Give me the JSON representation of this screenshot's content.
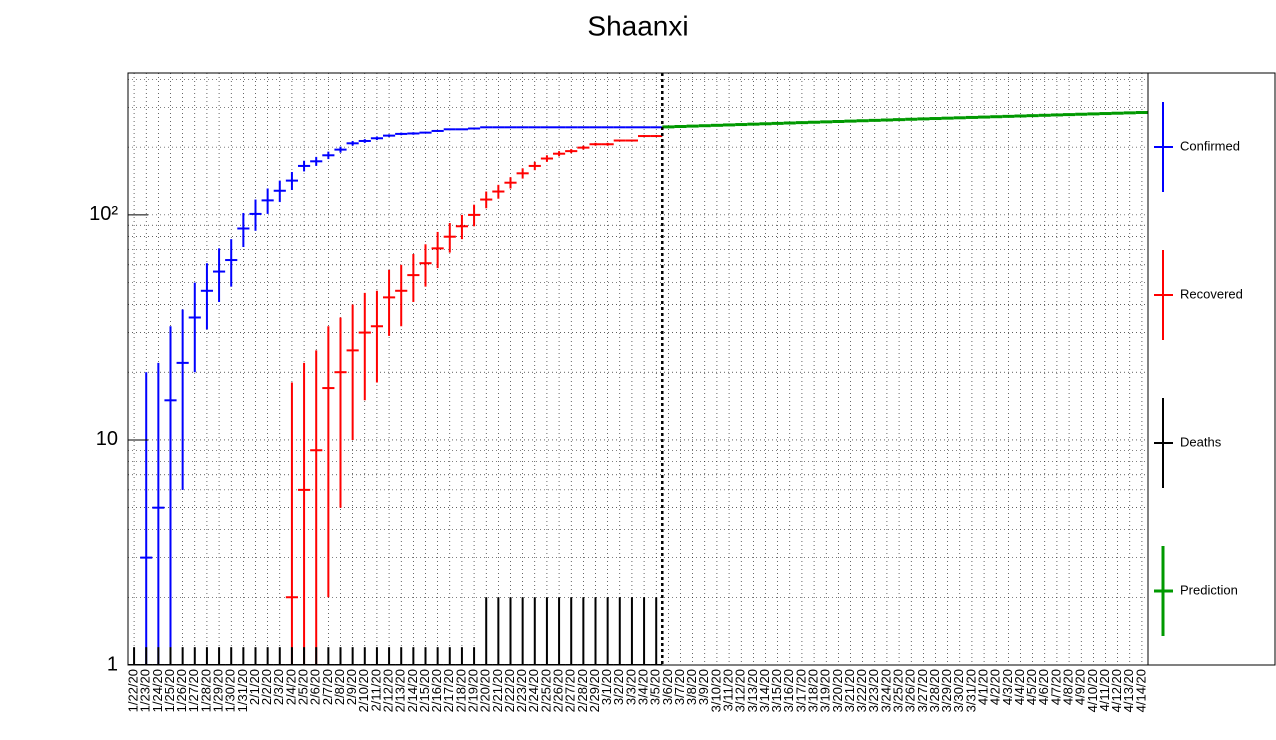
{
  "chart_data": {
    "type": "errorbar",
    "title": "Shaanxi",
    "categories": [
      "1/22/20",
      "1/23/20",
      "1/24/20",
      "1/25/20",
      "1/26/20",
      "1/27/20",
      "1/28/20",
      "1/29/20",
      "1/30/20",
      "1/31/20",
      "2/1/20",
      "2/2/20",
      "2/3/20",
      "2/4/20",
      "2/5/20",
      "2/6/20",
      "2/7/20",
      "2/8/20",
      "2/9/20",
      "2/10/20",
      "2/11/20",
      "2/12/20",
      "2/13/20",
      "2/14/20",
      "2/15/20",
      "2/16/20",
      "2/17/20",
      "2/18/20",
      "2/19/20",
      "2/20/20",
      "2/21/20",
      "2/22/20",
      "2/23/20",
      "2/24/20",
      "2/25/20",
      "2/26/20",
      "2/27/20",
      "2/28/20",
      "2/29/20",
      "3/1/20",
      "3/2/20",
      "3/3/20",
      "3/4/20",
      "3/5/20",
      "3/6/20",
      "3/7/20",
      "3/8/20",
      "3/9/20",
      "3/10/20",
      "3/11/20",
      "3/12/20",
      "3/13/20",
      "3/14/20",
      "3/15/20",
      "3/16/20",
      "3/17/20",
      "3/18/20",
      "3/19/20",
      "3/20/20",
      "3/21/20",
      "3/22/20",
      "3/23/20",
      "3/24/20",
      "3/25/20",
      "3/26/20",
      "3/27/20",
      "3/28/20",
      "3/29/20",
      "3/30/20",
      "3/31/20",
      "4/1/20",
      "4/2/20",
      "4/3/20",
      "4/4/20",
      "4/5/20",
      "4/6/20",
      "4/7/20",
      "4/8/20",
      "4/9/20",
      "4/10/20",
      "4/11/20",
      "4/12/20",
      "4/13/20",
      "4/14/20"
    ],
    "series": [
      {
        "name": "Confirmed",
        "color": "#0000ff",
        "values": [
          null,
          3,
          5,
          15,
          22,
          35,
          46,
          56,
          63,
          87,
          101,
          116,
          128,
          142,
          165,
          173,
          184,
          195,
          208,
          213,
          219,
          225,
          229,
          230,
          232,
          236,
          240,
          240,
          242,
          245,
          245,
          245,
          245,
          245,
          245,
          245,
          245,
          245,
          245,
          245,
          245,
          245,
          245,
          245,
          null,
          null,
          null,
          null,
          null,
          null,
          null,
          null,
          null,
          null,
          null,
          null,
          null,
          null,
          null,
          null,
          null,
          null,
          null,
          null,
          null,
          null,
          null,
          null,
          null,
          null,
          null,
          null,
          null,
          null,
          null,
          null,
          null,
          null,
          null,
          null,
          null,
          null,
          null,
          null
        ],
        "errors": [
          null,
          17,
          17,
          17,
          16,
          15,
          15,
          15,
          15,
          15,
          16,
          15,
          14,
          13,
          9,
          8,
          7,
          6,
          5,
          4,
          4,
          3,
          3,
          3,
          2,
          2,
          2,
          1,
          1,
          0,
          0,
          0,
          0,
          0,
          0,
          0,
          0,
          0,
          0,
          0,
          0,
          0,
          0,
          0,
          null,
          null,
          null,
          null,
          null,
          null,
          null,
          null,
          null,
          null,
          null,
          null,
          null,
          null,
          null,
          null,
          null,
          null,
          null,
          null,
          null,
          null,
          null,
          null,
          null,
          null,
          null,
          null,
          null,
          null,
          null,
          null,
          null,
          null,
          null,
          null,
          null,
          null,
          null,
          null
        ]
      },
      {
        "name": "Recovered",
        "color": "#ff0000",
        "values": [
          null,
          null,
          null,
          null,
          null,
          null,
          null,
          null,
          null,
          null,
          null,
          null,
          null,
          2,
          6,
          9,
          17,
          20,
          25,
          30,
          32,
          43,
          46,
          54,
          61,
          71,
          80,
          89,
          100,
          117,
          127,
          139,
          153,
          165,
          178,
          187,
          192,
          199,
          206,
          206,
          214,
          214,
          224,
          224,
          null,
          null,
          null,
          null,
          null,
          null,
          null,
          null,
          null,
          null,
          null,
          null,
          null,
          null,
          null,
          null,
          null,
          null,
          null,
          null,
          null,
          null,
          null,
          null,
          null,
          null,
          null,
          null,
          null,
          null,
          null,
          null,
          null,
          null,
          null,
          null,
          null,
          null,
          null,
          null
        ],
        "errors": [
          null,
          null,
          null,
          null,
          null,
          null,
          null,
          null,
          null,
          null,
          null,
          null,
          null,
          16,
          16,
          16,
          15,
          15,
          15,
          15,
          14,
          14,
          14,
          13,
          13,
          13,
          12,
          11,
          11,
          10,
          9,
          8,
          8,
          7,
          6,
          5,
          4,
          4,
          3,
          3,
          2,
          2,
          2,
          2,
          null,
          null,
          null,
          null,
          null,
          null,
          null,
          null,
          null,
          null,
          null,
          null,
          null,
          null,
          null,
          null,
          null,
          null,
          null,
          null,
          null,
          null,
          null,
          null,
          null,
          null,
          null,
          null,
          null,
          null,
          null,
          null,
          null,
          null,
          null,
          null,
          null,
          null,
          null,
          null
        ]
      },
      {
        "name": "Deaths",
        "color": "#000000",
        "values": [
          1,
          1,
          1,
          1,
          1,
          1,
          1,
          1,
          1,
          1,
          1,
          1,
          1,
          1,
          1,
          1,
          1,
          1,
          1,
          1,
          1,
          1,
          1,
          1,
          1,
          1,
          1,
          1,
          1,
          1,
          1,
          1,
          1,
          1,
          1,
          1,
          1,
          1,
          1,
          1,
          1,
          1,
          1,
          1,
          null,
          null,
          null,
          null,
          null,
          null,
          null,
          null,
          null,
          null,
          null,
          null,
          null,
          null,
          null,
          null,
          null,
          null,
          null,
          null,
          null,
          null,
          null,
          null,
          null,
          null,
          null,
          null,
          null,
          null,
          null,
          null,
          null,
          null,
          null,
          null,
          null,
          null,
          null,
          null
        ],
        "errors": [
          0.2,
          0.2,
          0.2,
          0.2,
          0.2,
          0.2,
          0.2,
          0.2,
          0.2,
          0.2,
          0.2,
          0.2,
          0.2,
          0.2,
          0.2,
          0.2,
          0.2,
          0.2,
          0.2,
          0.2,
          0.2,
          0.2,
          0.2,
          0.2,
          0.2,
          0.2,
          0.2,
          0.2,
          0.2,
          1,
          1,
          1,
          1,
          1,
          1,
          1,
          1,
          1,
          1,
          1,
          1,
          1,
          1,
          1,
          null,
          null,
          null,
          null,
          null,
          null,
          null,
          null,
          null,
          null,
          null,
          null,
          null,
          null,
          null,
          null,
          null,
          null,
          null,
          null,
          null,
          null,
          null,
          null,
          null,
          null,
          null,
          null,
          null,
          null,
          null,
          null,
          null,
          null,
          null,
          null,
          null,
          null,
          null,
          null
        ]
      },
      {
        "name": "Prediction",
        "color": "#009900",
        "values": [
          null,
          null,
          null,
          null,
          null,
          null,
          null,
          null,
          null,
          null,
          null,
          null,
          null,
          null,
          null,
          null,
          null,
          null,
          null,
          null,
          null,
          null,
          null,
          null,
          null,
          null,
          null,
          null,
          null,
          null,
          null,
          null,
          null,
          null,
          null,
          null,
          null,
          null,
          null,
          null,
          null,
          null,
          null,
          null,
          246,
          247,
          248,
          249,
          250,
          251,
          252,
          253,
          254,
          255,
          256,
          257,
          258,
          259,
          260,
          261,
          262,
          263,
          264,
          265,
          266,
          267,
          268,
          269,
          270,
          271,
          272,
          273,
          274,
          275,
          276,
          277,
          278,
          279,
          280,
          281,
          282,
          283,
          284,
          285
        ],
        "errors": [
          null,
          null,
          null,
          null,
          null,
          null,
          null,
          null,
          null,
          null,
          null,
          null,
          null,
          null,
          null,
          null,
          null,
          null,
          null,
          null,
          null,
          null,
          null,
          null,
          null,
          null,
          null,
          null,
          null,
          null,
          null,
          null,
          null,
          null,
          null,
          null,
          null,
          null,
          null,
          null,
          null,
          null,
          null,
          null,
          2,
          2,
          2,
          2,
          2,
          2,
          2,
          2,
          2,
          2,
          2,
          2,
          2,
          2,
          2,
          2,
          2,
          2,
          2,
          2,
          2,
          2,
          2,
          2,
          2,
          2,
          2,
          2,
          2,
          2,
          2,
          2,
          2,
          2,
          2,
          2,
          2,
          2,
          2,
          2
        ]
      }
    ],
    "ylim": [
      1,
      427
    ],
    "yticks": [
      1,
      10,
      {
        "value": 100,
        "label": "10²"
      }
    ],
    "log_y": true,
    "grid": true
  }
}
